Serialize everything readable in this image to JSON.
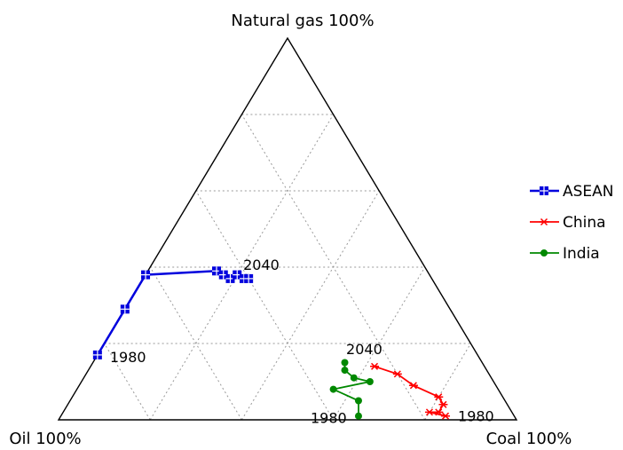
{
  "chart_data": {
    "type": "ternary-line",
    "corners": {
      "top": "Natural gas 100%",
      "left": "Oil 100%",
      "right": "Coal 100%"
    },
    "components": [
      "Oil",
      "Coal",
      "Natural gas"
    ],
    "grid": true,
    "grid_step_percent": 20,
    "legend_position": "right",
    "series": [
      {
        "name": "ASEAN",
        "color": "#0000dd",
        "marker": "square",
        "start_label": "1980",
        "end_label": "2040",
        "points": [
          {
            "oil": 83,
            "coal": 0,
            "natural_gas": 17
          },
          {
            "oil": 71,
            "coal": 0,
            "natural_gas": 29
          },
          {
            "oil": 62,
            "coal": 0,
            "natural_gas": 38
          },
          {
            "oil": 46,
            "coal": 15,
            "natural_gas": 39
          },
          {
            "oil": 45,
            "coal": 17,
            "natural_gas": 38
          },
          {
            "oil": 44,
            "coal": 19,
            "natural_gas": 37
          },
          {
            "oil": 42,
            "coal": 20,
            "natural_gas": 38
          },
          {
            "oil": 41,
            "coal": 22,
            "natural_gas": 37
          },
          {
            "oil": 40,
            "coal": 23,
            "natural_gas": 37
          }
        ]
      },
      {
        "name": "China",
        "color": "#ff0000",
        "marker": "star",
        "start_label": "1980",
        "end_label": "2040",
        "points": [
          {
            "oil": 15,
            "coal": 84,
            "natural_gas": 1
          },
          {
            "oil": 18,
            "coal": 80,
            "natural_gas": 2
          },
          {
            "oil": 16,
            "coal": 82,
            "natural_gas": 2
          },
          {
            "oil": 14,
            "coal": 82,
            "natural_gas": 4
          },
          {
            "oil": 14,
            "coal": 80,
            "natural_gas": 6
          },
          {
            "oil": 18,
            "coal": 73,
            "natural_gas": 9
          },
          {
            "oil": 20,
            "coal": 68,
            "natural_gas": 12
          },
          {
            "oil": 24,
            "coal": 62,
            "natural_gas": 14
          }
        ]
      },
      {
        "name": "India",
        "color": "#008800",
        "marker": "circle",
        "start_label": "1980",
        "end_label": "",
        "points": [
          {
            "oil": 34,
            "coal": 65,
            "natural_gas": 1
          },
          {
            "oil": 32,
            "coal": 63,
            "natural_gas": 5
          },
          {
            "oil": 36,
            "coal": 56,
            "natural_gas": 8
          },
          {
            "oil": 27,
            "coal": 63,
            "natural_gas": 10
          },
          {
            "oil": 30,
            "coal": 59,
            "natural_gas": 11
          },
          {
            "oil": 31,
            "coal": 56,
            "natural_gas": 13
          },
          {
            "oil": 30,
            "coal": 55,
            "natural_gas": 15
          }
        ]
      }
    ]
  }
}
